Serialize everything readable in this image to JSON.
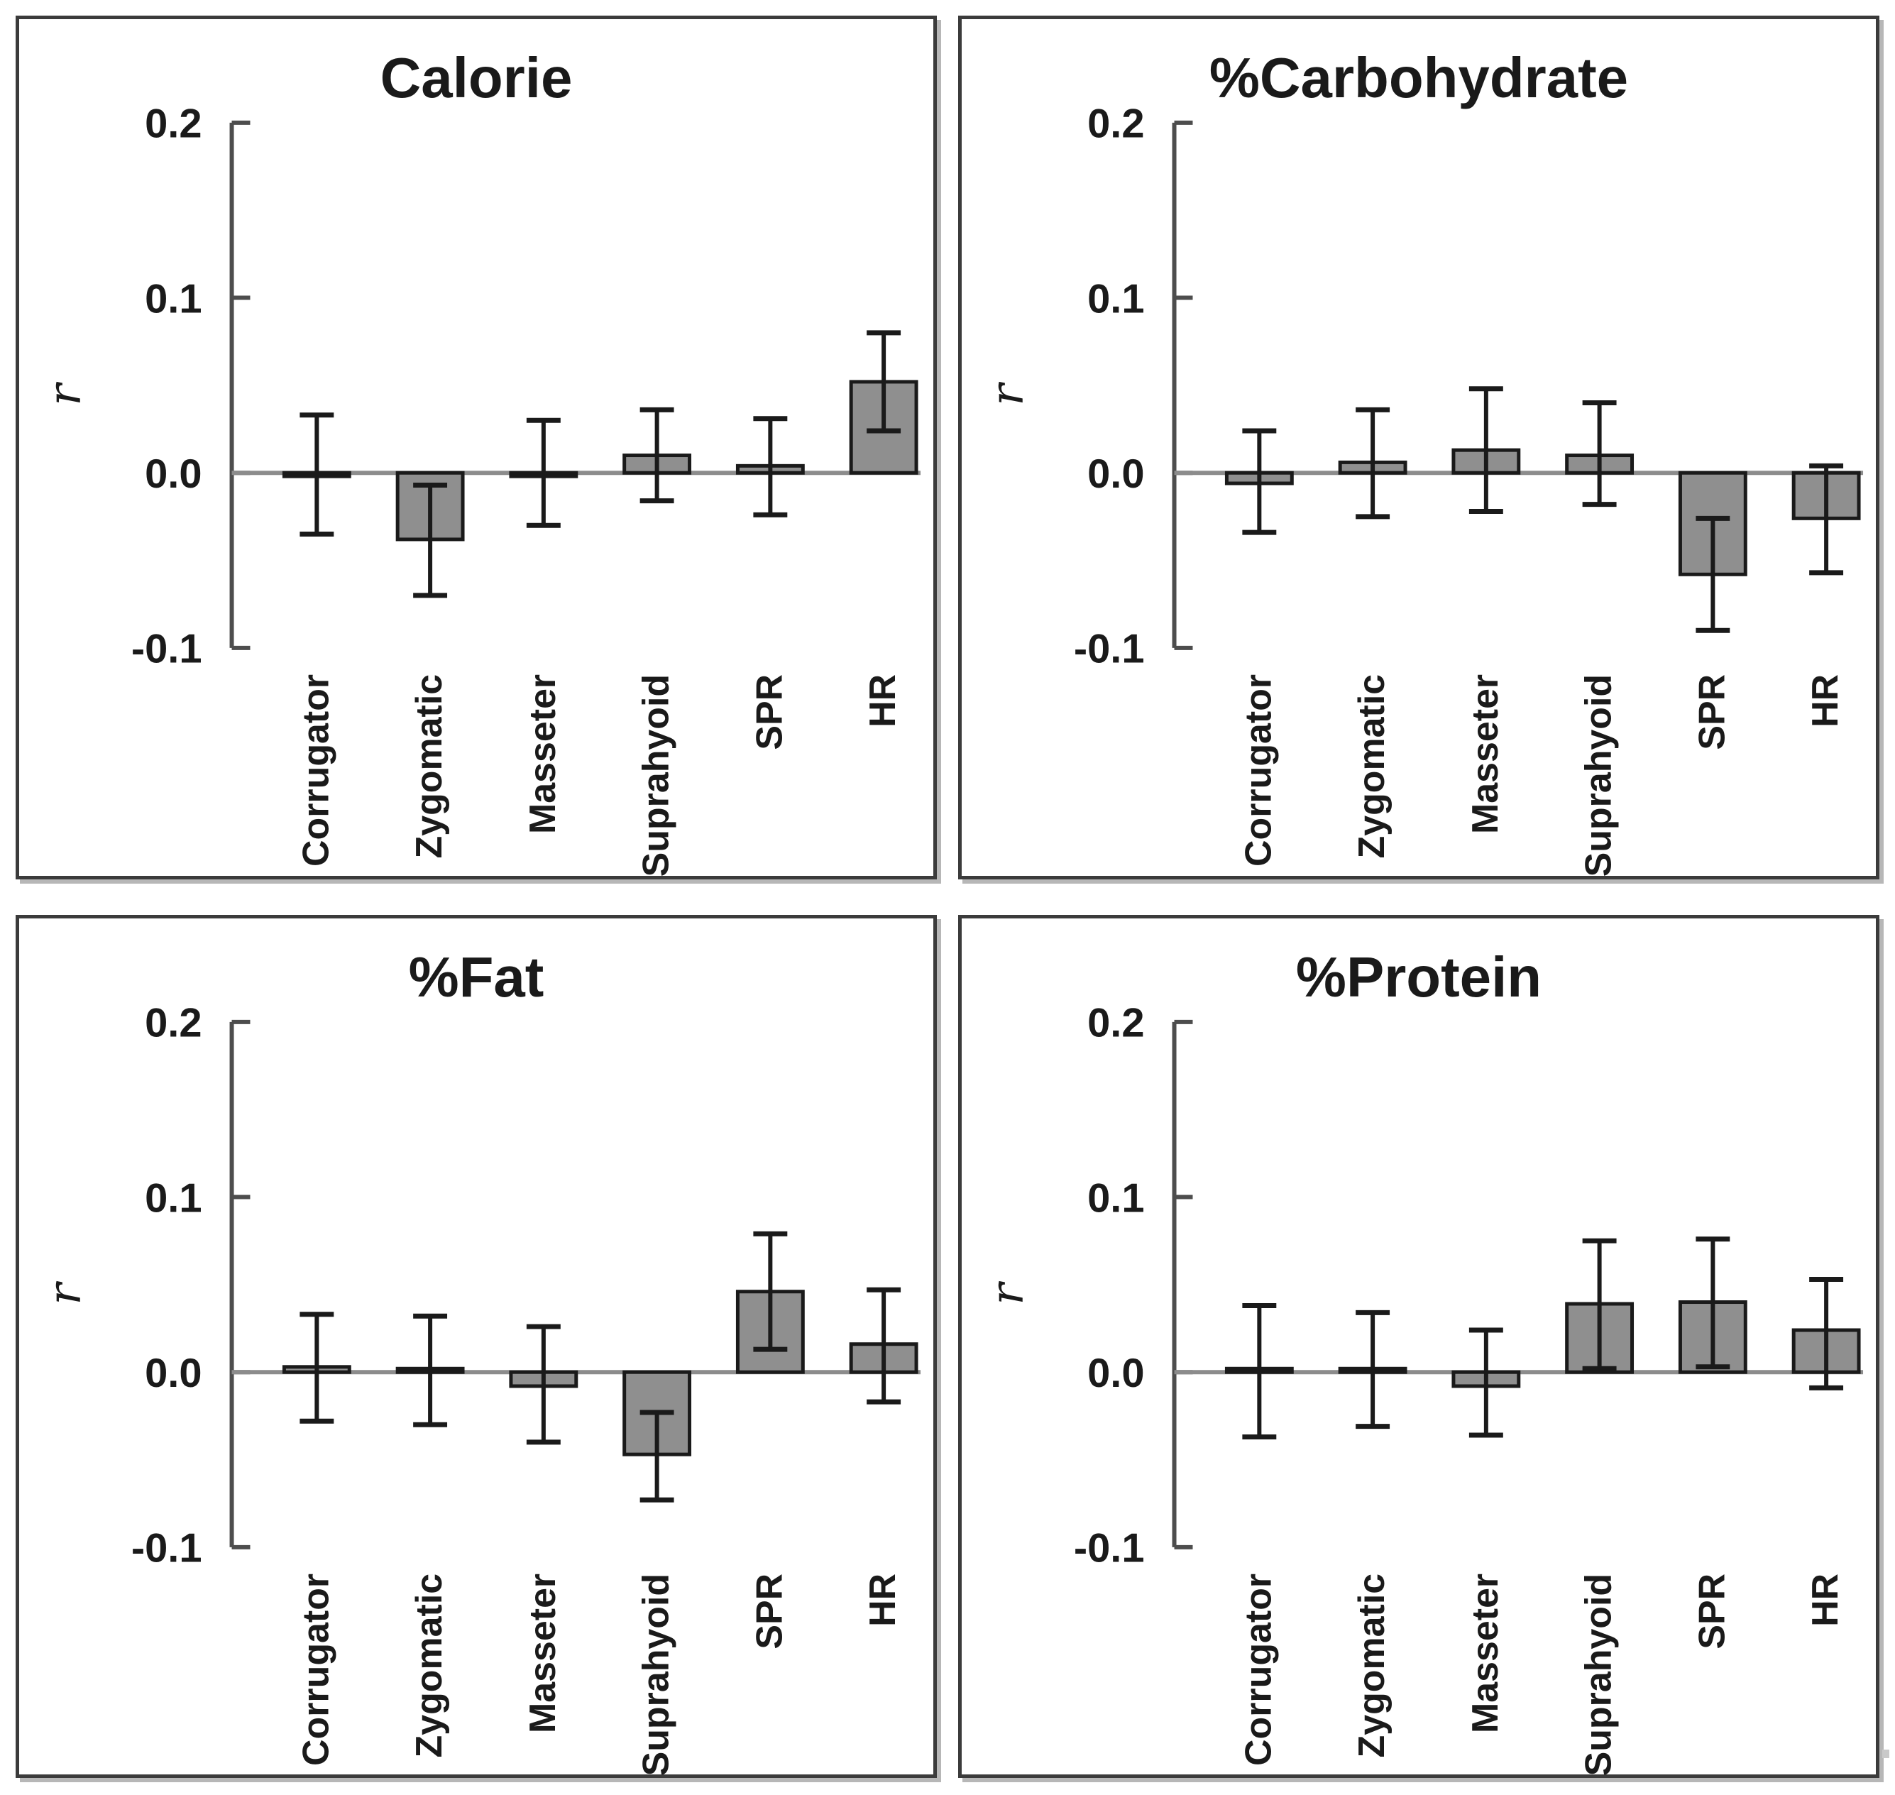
{
  "figure": {
    "background": "#ffffff",
    "panel_border_color": "#3b3b3b",
    "panel_shadow_color": "#b7b7b7"
  },
  "style": {
    "bar_fill": "#8f8f8f",
    "bar_stroke": "#1a1a1a",
    "error_color": "#1a1a1a",
    "axis_color": "#4d4d4d",
    "zero_line_color": "#8c8c8c",
    "text_color": "#1a1a1a"
  },
  "chart_data": [
    {
      "type": "bar",
      "title": "Calorie",
      "ylabel": "r",
      "ylim": [
        -0.1,
        0.2
      ],
      "yticks": [
        {
          "label": "0.2",
          "value": 0.2
        },
        {
          "label": "0.1",
          "value": 0.1
        },
        {
          "label": "0.0",
          "value": 0.0
        },
        {
          "label": "-0.1",
          "value": -0.1
        }
      ],
      "grid": false,
      "legend": "none",
      "categories": [
        "Corrugator",
        "Zygomatic",
        "Masseter",
        "Suprahyoid",
        "SPR",
        "HR"
      ],
      "values": [
        -0.002,
        -0.038,
        -0.002,
        0.01,
        0.004,
        0.052
      ],
      "error_low": [
        -0.035,
        -0.07,
        -0.03,
        -0.016,
        -0.024,
        0.024
      ],
      "error_high": [
        0.033,
        -0.007,
        0.03,
        0.036,
        0.031,
        0.08
      ]
    },
    {
      "type": "bar",
      "title": "%Carbohydrate",
      "ylabel": "r",
      "ylim": [
        -0.1,
        0.2
      ],
      "yticks": [
        {
          "label": "0.2",
          "value": 0.2
        },
        {
          "label": "0.1",
          "value": 0.1
        },
        {
          "label": "0.0",
          "value": 0.0
        },
        {
          "label": "-0.1",
          "value": -0.1
        }
      ],
      "grid": false,
      "legend": "none",
      "categories": [
        "Corrugator",
        "Zygomatic",
        "Masseter",
        "Suprahyoid",
        "SPR",
        "HR"
      ],
      "values": [
        -0.006,
        0.006,
        0.013,
        0.01,
        -0.058,
        -0.026
      ],
      "error_low": [
        -0.034,
        -0.025,
        -0.022,
        -0.018,
        -0.09,
        -0.057
      ],
      "error_high": [
        0.024,
        0.036,
        0.048,
        0.04,
        -0.026,
        0.004
      ]
    },
    {
      "type": "bar",
      "title": "%Fat",
      "ylabel": "r",
      "ylim": [
        -0.1,
        0.2
      ],
      "yticks": [
        {
          "label": "0.2",
          "value": 0.2
        },
        {
          "label": "0.1",
          "value": 0.1
        },
        {
          "label": "0.0",
          "value": 0.0
        },
        {
          "label": "-0.1",
          "value": -0.1
        }
      ],
      "grid": false,
      "legend": "none",
      "categories": [
        "Corrugator",
        "Zygomatic",
        "Masseter",
        "Suprahyoid",
        "SPR",
        "HR"
      ],
      "values": [
        0.003,
        0.002,
        -0.008,
        -0.047,
        0.046,
        0.016
      ],
      "error_low": [
        -0.028,
        -0.03,
        -0.04,
        -0.073,
        0.013,
        -0.017
      ],
      "error_high": [
        0.033,
        0.032,
        0.026,
        -0.023,
        0.079,
        0.047
      ]
    },
    {
      "type": "bar",
      "title": "%Protein",
      "ylabel": "r",
      "ylim": [
        -0.1,
        0.2
      ],
      "yticks": [
        {
          "label": "0.2",
          "value": 0.2
        },
        {
          "label": "0.1",
          "value": 0.1
        },
        {
          "label": "0.0",
          "value": 0.0
        },
        {
          "label": "-0.1",
          "value": -0.1
        }
      ],
      "grid": false,
      "legend": "none",
      "categories": [
        "Corrugator",
        "Zygomatic",
        "Masseter",
        "Suprahyoid",
        "SPR",
        "HR"
      ],
      "values": [
        0.002,
        0.002,
        -0.008,
        0.039,
        0.04,
        0.024
      ],
      "error_low": [
        -0.037,
        -0.031,
        -0.036,
        0.002,
        0.003,
        -0.009
      ],
      "error_high": [
        0.038,
        0.034,
        0.024,
        0.075,
        0.076,
        0.053
      ]
    }
  ]
}
